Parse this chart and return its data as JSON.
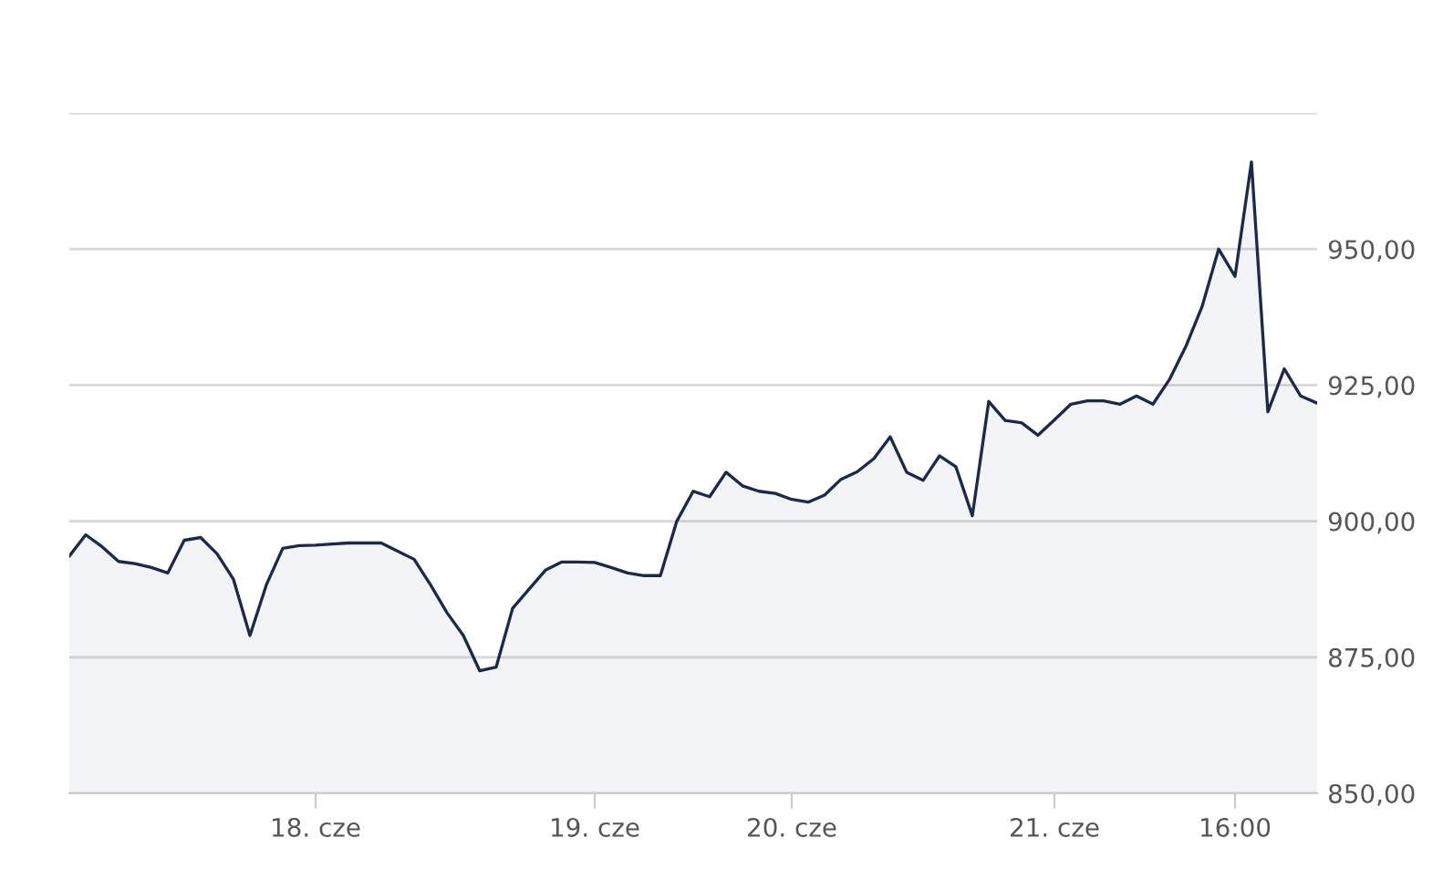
{
  "chart_data": {
    "type": "area",
    "color": "#1b2a4a",
    "categories": [
      null,
      null,
      null,
      null,
      null,
      null,
      null,
      null,
      null,
      null,
      null,
      null,
      null,
      null,
      null,
      "18. cze",
      null,
      null,
      null,
      null,
      null,
      null,
      null,
      null,
      null,
      null,
      null,
      null,
      null,
      null,
      null,
      null,
      "19. cze",
      null,
      null,
      null,
      null,
      null,
      null,
      null,
      null,
      null,
      null,
      null,
      "20. cze",
      null,
      null,
      null,
      null,
      null,
      null,
      null,
      null,
      null,
      null,
      null,
      null,
      null,
      null,
      null,
      "21. cze",
      null,
      null,
      null,
      null,
      null,
      null,
      null,
      null,
      null,
      null,
      "16:00",
      null,
      null,
      null,
      null,
      null
    ],
    "values": [
      893.6,
      897.5,
      895.3,
      892.6,
      892.2,
      891.5,
      890.5,
      896.5,
      897,
      894,
      889.3,
      879,
      888.3,
      895,
      895.5,
      895.6,
      895.8,
      896,
      896,
      896,
      894.5,
      893,
      888.3,
      883.2,
      879,
      872.5,
      873.2,
      884,
      887.5,
      891,
      892.5,
      892.5,
      892.4,
      891.5,
      890.5,
      890,
      890,
      900,
      905.5,
      904.5,
      909,
      906.5,
      905.5,
      905.1,
      904,
      903.5,
      904.8,
      907.7,
      909.1,
      911.5,
      915.5,
      909,
      907.5,
      912,
      910,
      901,
      922,
      918.5,
      918.1,
      915.8,
      918.6,
      921.5,
      922.1,
      922.1,
      921.5,
      923,
      921.5,
      926,
      932.1,
      939.5,
      950,
      945,
      966,
      920.1,
      928,
      923,
      921.7
    ],
    "ylim": [
      850,
      975
    ],
    "yticks": [
      {
        "value": 850,
        "label": "850,00"
      },
      {
        "value": 875,
        "label": "875,00"
      },
      {
        "value": 900,
        "label": "900,00"
      },
      {
        "value": 925,
        "label": "925,00"
      },
      {
        "value": 950,
        "label": "950,00"
      },
      {
        "value": 975,
        "label": null
      }
    ],
    "grid": "y"
  }
}
